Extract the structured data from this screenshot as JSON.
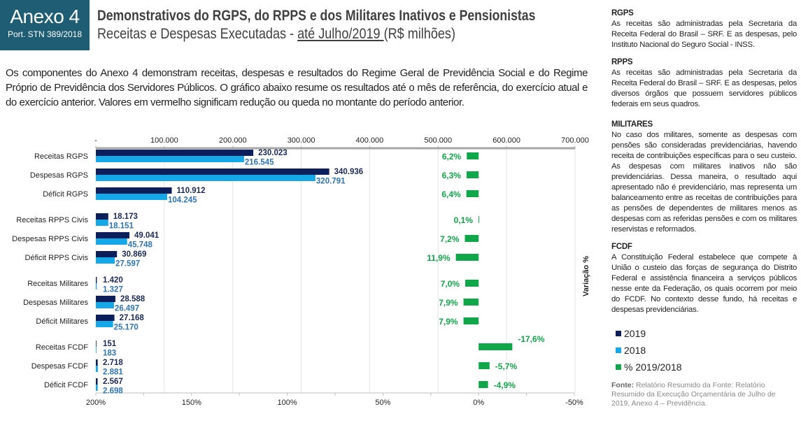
{
  "header": {
    "badge_title": "Anexo 4",
    "badge_sub": "Port. STN 389/2018",
    "title": "Demonstrativos do RGPS, do RPPS e dos Militares Inativos e Pensionistas",
    "subtitle_pre": "Receitas e Despesas Executadas - ",
    "subtitle_underlined": "até Julho/2019 ",
    "subtitle_post": "(R$ milhões)"
  },
  "intro": "Os componentes do Anexo 4 demonstram receitas, despesas e resultados do Regime Geral de Previdência Social e do Regime Próprio de Previdência dos Servidores Públicos. O gráfico abaixo resume os resultados até o mês de referência, do exercício atual e do exercício anterior. Valores em vermelho significam redução ou queda no montante do período anterior.",
  "chart_data": {
    "type": "bar",
    "orientation": "horizontal",
    "categories": [
      "Receitas RGPS",
      "Despesas RGPS",
      "Déficit RGPS",
      "Receitas RPPS Civis",
      "Despesas RPPS Civis",
      "Déficit RPPS Civis",
      "Receitas Militares",
      "Despesas Militares",
      "Déficit Militares",
      "Receitas FCDF",
      "Despesas FCDF",
      "Déficit FCDF"
    ],
    "series": [
      {
        "name": "2019",
        "color": "#0c1f5c",
        "label_color": "#1b2a55",
        "values": [
          230023,
          340936,
          110912,
          18173,
          49041,
          30869,
          1420,
          28588,
          27168,
          151,
          2718,
          2567
        ],
        "labels": [
          "230.023",
          "340.936",
          "110.912",
          "18.173",
          "49.041",
          "30.869",
          "1.420",
          "28.588",
          "27.168",
          "151",
          "2.718",
          "2.567"
        ]
      },
      {
        "name": "2018",
        "color": "#14a8e8",
        "label_color": "#2e75b6",
        "values": [
          216545,
          320791,
          104245,
          18151,
          45748,
          27597,
          1327,
          26497,
          25170,
          183,
          2881,
          2698
        ],
        "labels": [
          "216.545",
          "320.791",
          "104.245",
          "18.151",
          "45.748",
          "27.597",
          "1.327",
          "26.497",
          "25.170",
          "183",
          "2.881",
          "2.698"
        ]
      },
      {
        "name": "% 2019/2018",
        "color": "#10a64a",
        "axis": "secondary",
        "values": [
          6.2,
          6.3,
          6.4,
          0.1,
          7.2,
          11.9,
          7.0,
          7.9,
          7.9,
          -17.6,
          -5.7,
          -4.9
        ],
        "labels": [
          "6,2%",
          "6,3%",
          "6,4%",
          "0,1%",
          "7,2%",
          "11,9%",
          "7,0%",
          "7,9%",
          "7,9%",
          "-17,6%",
          "-5,7%",
          "-4,9%"
        ]
      }
    ],
    "x_top": {
      "range": [
        0,
        700000
      ],
      "ticks": [
        "-",
        "100.000",
        "200.000",
        "300.000",
        "400.000",
        "500.000",
        "600.000",
        "700.000"
      ]
    },
    "x_bottom": {
      "range": [
        200,
        -50
      ],
      "ticks": [
        "200%",
        "150%",
        "100%",
        "50%",
        "0%",
        "-50%"
      ],
      "label": "Variação %"
    },
    "grid": true,
    "legend_position": "right"
  },
  "side": {
    "sections": [
      {
        "title": "RGPS",
        "text": "As receitas são administradas pela Secretaria da Receita Federal do Brasil – SRF. E as despesas, pelo Instituto Nacional do Seguro Social - INSS."
      },
      {
        "title": "RPPS",
        "text": "As receitas são administradas pela Secretaria da Receita Federal do Brasil – SRF. E as despesas, pelos diversos órgãos que possuem servidores públicos federais em seus quadros."
      },
      {
        "title": "MILITARES",
        "text": "No caso dos militares, somente as despesas com pensões são consideradas previdenciárias, havendo receita de contribuições específicas para o seu custeio. As despesas com militares inativos não são previdenciárias. Dessa maneira, o resultado aqui apresentado não é previdenciário, mas representa um balanceamento entre as receitas de contribuições para as pensões de dependentes de militares menos as despesas com as referidas pensões e com os militares reservistas e reformados."
      },
      {
        "title": "FCDF",
        "text": "A Constituição Federal estabelece que compete à União o custeio das forças de segurança do Distrito Federal e assistência financeira a serviços públicos nesse ente da Federação, os quais ocorrem por meio do FCDF. No contexto desse fundo, há receitas e despesas previdenciárias."
      }
    ]
  },
  "legend": [
    "2019",
    "2018",
    "% 2019/2018"
  ],
  "fonte": {
    "label": "Fonte:",
    "text": " Relatório Resumido da Fonte: Relatório Resumido da Execução Orçamentária de Julho de 2019, Anexo 4 – Previdência."
  }
}
